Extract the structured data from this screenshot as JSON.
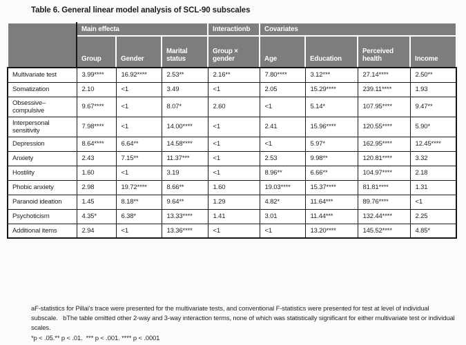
{
  "title": "Table 6. General linear model analysis of SCL-90 subscales",
  "table": {
    "group_headers": [
      {
        "label": "Main effecta",
        "span": 3
      },
      {
        "label": "Interactionb",
        "span": 1
      },
      {
        "label": "Covariates",
        "span": 4
      }
    ],
    "columns": [
      "Group",
      "Gender",
      "Marital status",
      "Group × gender",
      "Age",
      "Education",
      "Perceived health",
      "Income"
    ],
    "rows": [
      {
        "label": "Multivariate test",
        "values": [
          "3.99****",
          "16.92****",
          "2.53**",
          "2.16**",
          "7.80****",
          "3.12***",
          "27.14****",
          "2.50**"
        ]
      },
      {
        "label": "Somatization",
        "values": [
          "2.10",
          "<1",
          "3.49",
          "<1",
          "2.05",
          "15.29****",
          "239.11****",
          "1.93"
        ]
      },
      {
        "label": "Obsessive–compulsive",
        "values": [
          "9.67****",
          "<1",
          "8.07*",
          "2.60",
          "<1",
          "5.14*",
          "107.95****",
          "9.47**"
        ]
      },
      {
        "label": "Interpersonal sensitivity",
        "values": [
          "7.98****",
          "<1",
          "14.00****",
          "<1",
          "2.41",
          "15.96****",
          "120.55****",
          "5.90*"
        ]
      },
      {
        "label": "Depression",
        "values": [
          "8.64****",
          "6.64**",
          "14.58****",
          "<1",
          "<1",
          "5.97*",
          "162.95****",
          "12.45****"
        ]
      },
      {
        "label": "Anxiety",
        "values": [
          "2.43",
          "7.15**",
          "11.37***",
          "<1",
          "2.53",
          "9.98**",
          "120.81****",
          "3.32"
        ]
      },
      {
        "label": "Hostility",
        "values": [
          "1.60",
          "<1",
          "3.19",
          "<1",
          "8.96**",
          "6.66**",
          "104.97****",
          "2.18"
        ]
      },
      {
        "label": "Phobic anxiety",
        "values": [
          "2.98",
          "19.72****",
          "8.66**",
          "1.60",
          "19.03****",
          "15.37****",
          "81.81****",
          "1.31"
        ]
      },
      {
        "label": "Paranoid ideation",
        "values": [
          "1.45",
          "8.18**",
          "9.64**",
          "1.29",
          "4.82*",
          "11.64***",
          "89.76****",
          "<1"
        ]
      },
      {
        "label": "Psychoticism",
        "values": [
          "4.35*",
          "6.38*",
          "13.33****",
          "1.41",
          "3.01",
          "11.44***",
          "132.44****",
          "2.25"
        ]
      },
      {
        "label": "Additional items",
        "values": [
          "2.94",
          "<1",
          "13.36****",
          "<1",
          "<1",
          "13.20****",
          "145.52****",
          "4.85*"
        ]
      }
    ]
  },
  "footnotes": {
    "notes": "aF-statistics for Pillai's trace were presented for the multivariate tests, and conventional F-statistics were presented for test at level of individual subscale.   bThe table omitted other 2-way and 3-way interaction terms, none of which was statistically significant for either multivariate test or individual scales.",
    "significance": "*p < .05.** p < .01.  *** p < .001. **** p < .0001"
  },
  "colors": {
    "header_bg": "#7d7d7d",
    "header_text": "#ffffff",
    "border": "#151515",
    "text": "#1c1c1c",
    "page_bg": "#fbfbfa"
  }
}
